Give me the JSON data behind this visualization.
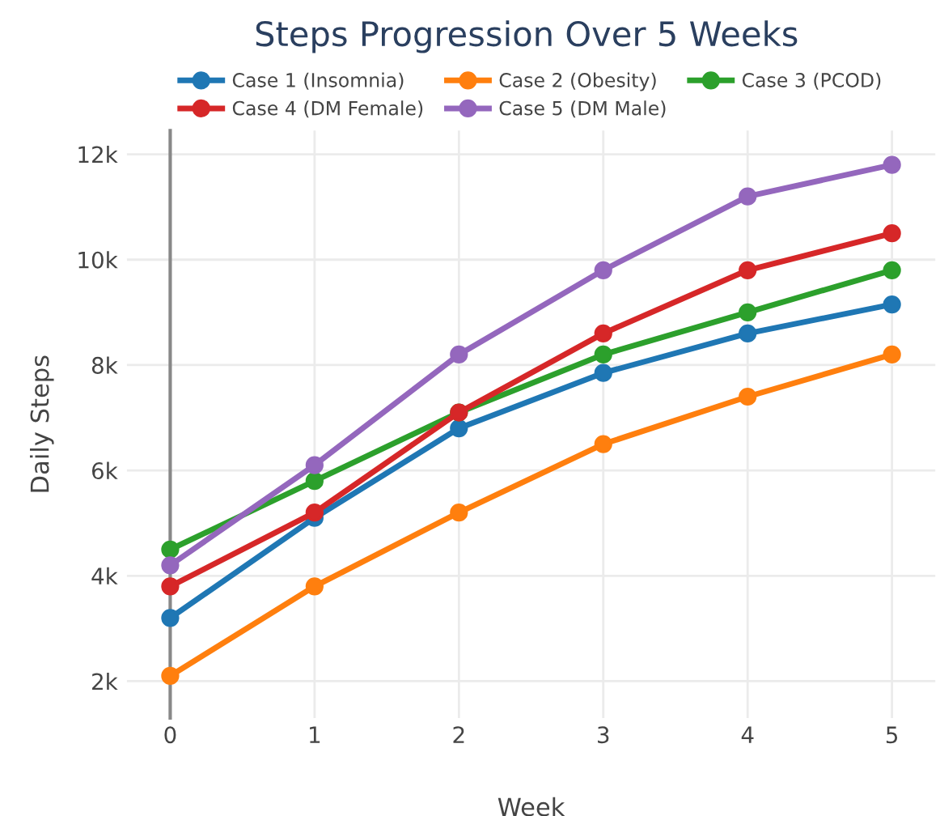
{
  "chart_data": {
    "type": "line",
    "title": "Steps Progression Over 5 Weeks",
    "xlabel": "Week",
    "ylabel": "Daily Steps",
    "x": [
      0,
      1,
      2,
      3,
      4,
      5
    ],
    "series": [
      {
        "name": "Case 1 (Insomnia)",
        "color": "#1f77b4",
        "values": [
          3200,
          5100,
          6800,
          7850,
          8600,
          9150
        ]
      },
      {
        "name": "Case 2 (Obesity)",
        "color": "#ff7f0e",
        "values": [
          2100,
          3800,
          5200,
          6500,
          7400,
          8200
        ]
      },
      {
        "name": "Case 3 (PCOD)",
        "color": "#2ca02c",
        "values": [
          4500,
          5800,
          7100,
          8200,
          9000,
          9800
        ]
      },
      {
        "name": "Case 4 (DM Female)",
        "color": "#d62728",
        "values": [
          3800,
          5200,
          7100,
          8600,
          9800,
          10500
        ]
      },
      {
        "name": "Case 5 (DM Male)",
        "color": "#9467bd",
        "values": [
          4200,
          6100,
          8200,
          9800,
          11200,
          11800
        ]
      }
    ],
    "xlim": [
      -0.3,
      5.3
    ],
    "ylim": [
      1300,
      12450
    ],
    "xticks": [
      0,
      1,
      2,
      3,
      4,
      5
    ],
    "yticks": [
      {
        "value": 2000,
        "label": "2k"
      },
      {
        "value": 4000,
        "label": "4k"
      },
      {
        "value": 6000,
        "label": "6k"
      },
      {
        "value": 8000,
        "label": "8k"
      },
      {
        "value": 10000,
        "label": "10k"
      },
      {
        "value": 12000,
        "label": "12k"
      }
    ],
    "grid": true,
    "legend": "top",
    "marker": "circle",
    "line_style": "solid"
  }
}
